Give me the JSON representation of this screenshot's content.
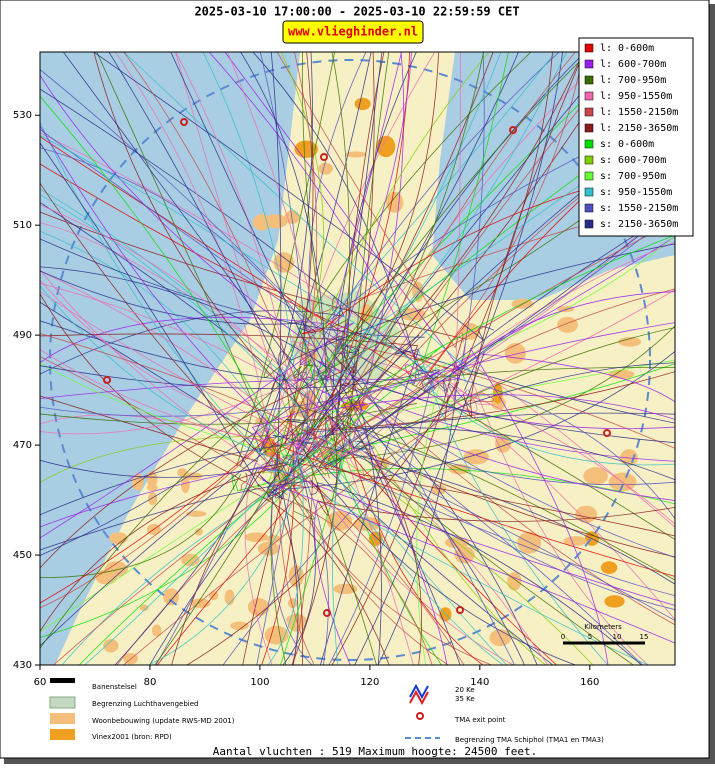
{
  "header": {
    "title": "2025-03-10 17:00:00 - 2025-03-10 22:59:59 CET",
    "badge": "www.vlieghinder.nl"
  },
  "map": {
    "xlim": [
      60,
      175.5
    ],
    "ylim": [
      430,
      541.5
    ],
    "xticks": [
      60,
      80,
      100,
      120,
      140,
      160
    ],
    "yticks": [
      430,
      450,
      470,
      490,
      510,
      530
    ]
  },
  "legend": {
    "items": [
      {
        "label": "l: 0-600m",
        "color": "#e00000"
      },
      {
        "label": "l: 600-700m",
        "color": "#9a1cf0"
      },
      {
        "label": "l: 700-950m",
        "color": "#3a6e00"
      },
      {
        "label": "l: 950-1550m",
        "color": "#f06ab0"
      },
      {
        "label": "l: 1550-2150m",
        "color": "#c84848"
      },
      {
        "label": "l: 2150-3650m",
        "color": "#8b1a1a"
      },
      {
        "label": "s: 0-600m",
        "color": "#00e000"
      },
      {
        "label": "s: 600-700m",
        "color": "#7ed000"
      },
      {
        "label": "s: 700-950m",
        "color": "#66ff33"
      },
      {
        "label": "s: 950-1550m",
        "color": "#30c0c8"
      },
      {
        "label": "s: 1550-2150m",
        "color": "#5050c0"
      },
      {
        "label": "s: 2150-3650m",
        "color": "#2a2a88"
      }
    ]
  },
  "scale": {
    "title": "Kilometers",
    "ticks": [
      0,
      5,
      10,
      15
    ]
  },
  "key": {
    "runways": "Banenstelsel",
    "airport": "Begrenzing Luchthavengebied",
    "housing": "Woonbebouwing (update RWS-MD 2001)",
    "vinex": "Vinex2001 (bron: RPD)",
    "ke20": "20 Ke",
    "ke35": "35 Ke",
    "exit": "TMA exit point",
    "tma": "Begrenzing TMA Schiphol  (TMA1 en TMA3)"
  },
  "footer": "Aantal vluchten : 519 Maximum hoogte: 24500 feet."
}
